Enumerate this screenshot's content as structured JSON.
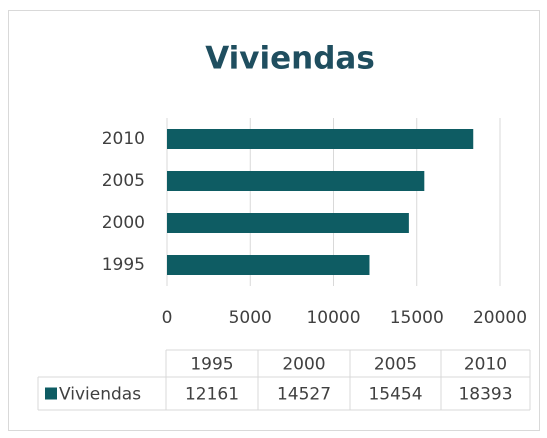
{
  "chart_data": {
    "type": "bar",
    "orientation": "horizontal",
    "title": "Viviendas",
    "categories": [
      "1995",
      "2000",
      "2005",
      "2010"
    ],
    "series": [
      {
        "name": "Viviendas",
        "color": "#0e5c63",
        "values": [
          12161,
          14527,
          15454,
          18393
        ]
      }
    ],
    "xlim": [
      0,
      20000
    ],
    "xticks": [
      0,
      5000,
      10000,
      15000,
      20000
    ],
    "grid": true,
    "data_table": true
  }
}
